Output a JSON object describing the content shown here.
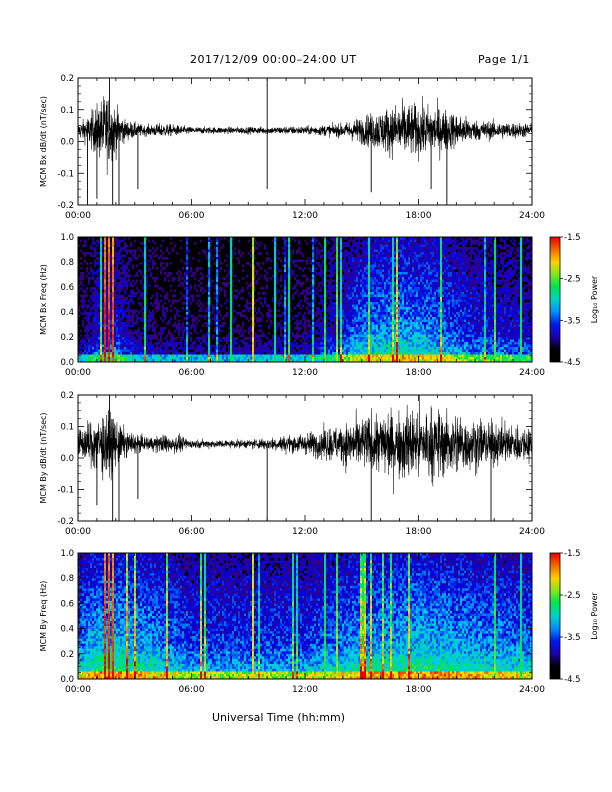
{
  "header": {
    "title": "2017/12/09   00:00–24:00 UT",
    "page": "Page 1/1"
  },
  "chart_data": [
    {
      "type": "line",
      "panel": "Bx dB/dt",
      "ylabel": "MCM Bx dB/dt (nT/sec)",
      "ylim": [
        -0.2,
        0.2
      ],
      "yticks": [
        "0.2",
        "0.1",
        "0.0",
        "-0.1",
        "-0.2"
      ],
      "xlim": [
        "00:00",
        "24:00"
      ],
      "xticks": [
        "00:00",
        "06:00",
        "12:00",
        "18:00",
        "24:00"
      ],
      "baseline": 0.035,
      "noise_profile": [
        [
          "00:00",
          0.02
        ],
        [
          "00:30",
          0.04
        ],
        [
          "01:30",
          0.11
        ],
        [
          "02:30",
          0.03
        ],
        [
          "03:30",
          0.015
        ],
        [
          "04:30",
          0.02
        ],
        [
          "06:00",
          0.01
        ],
        [
          "09:00",
          0.01
        ],
        [
          "12:00",
          0.012
        ],
        [
          "14:00",
          0.02
        ],
        [
          "15:00",
          0.04
        ],
        [
          "17:00",
          0.08
        ],
        [
          "19:00",
          0.07
        ],
        [
          "21:00",
          0.03
        ],
        [
          "24:00",
          0.02
        ]
      ],
      "spikes": [
        [
          "00:30",
          -0.2
        ],
        [
          "01:00",
          -0.18
        ],
        [
          "01:40",
          0.2
        ],
        [
          "01:50",
          -0.2
        ],
        [
          "02:10",
          -0.2
        ],
        [
          "03:10",
          -0.15
        ],
        [
          "10:00",
          -0.15
        ],
        [
          "10:00",
          0.2
        ],
        [
          "15:30",
          -0.16
        ],
        [
          "18:40",
          -0.15
        ],
        [
          "19:30",
          -0.2
        ]
      ]
    },
    {
      "type": "heatmap",
      "panel": "Bx spectrogram",
      "ylabel": "MCM Bx Freq (Hz)",
      "ylim": [
        0.0,
        1.0
      ],
      "yticks": [
        "1.0",
        "0.8",
        "0.6",
        "0.4",
        "0.2",
        "0.0"
      ],
      "xlim": [
        "00:00",
        "24:00"
      ],
      "xticks": [
        "00:00",
        "06:00",
        "12:00",
        "18:00",
        "24:00"
      ],
      "colorbar": {
        "label": "Log₁₀ Power",
        "range": [
          -4.5,
          -1.5
        ],
        "ticks": [
          "-1.5",
          "-2.5",
          "-3.5",
          "-4.5"
        ]
      },
      "activity_profile": [
        [
          "00:00",
          0.15
        ],
        [
          "01:00",
          0.3
        ],
        [
          "02:00",
          0.35
        ],
        [
          "03:00",
          0.2
        ],
        [
          "05:00",
          0.15
        ],
        [
          "08:00",
          0.15
        ],
        [
          "12:00",
          0.18
        ],
        [
          "13:30",
          0.3
        ],
        [
          "15:00",
          0.45
        ],
        [
          "17:00",
          0.5
        ],
        [
          "19:00",
          0.45
        ],
        [
          "21:00",
          0.35
        ],
        [
          "24:00",
          0.3
        ]
      ],
      "bursts": [
        [
          "01:20",
          -1.5
        ],
        [
          "01:35",
          -1.5
        ],
        [
          "01:50",
          -1.6
        ],
        [
          "08:00",
          -2.6
        ],
        [
          "09:10",
          -2.0
        ],
        [
          "10:20",
          -2.8
        ],
        [
          "13:00",
          -2.5
        ],
        [
          "13:40",
          -2.3
        ],
        [
          "22:00",
          -2.4
        ],
        [
          "23:20",
          -2.6
        ]
      ]
    },
    {
      "type": "line",
      "panel": "By dB/dt",
      "ylabel": "MCM By dB/dt (nT/sec)",
      "ylim": [
        -0.2,
        0.2
      ],
      "yticks": [
        "0.2",
        "0.1",
        "0.0",
        "-0.1",
        "-0.2"
      ],
      "xlim": [
        "00:00",
        "24:00"
      ],
      "xticks": [
        "00:00",
        "06:00",
        "12:00",
        "18:00",
        "24:00"
      ],
      "baseline": 0.045,
      "noise_profile": [
        [
          "00:00",
          0.04
        ],
        [
          "00:30",
          0.06
        ],
        [
          "01:30",
          0.1
        ],
        [
          "02:30",
          0.04
        ],
        [
          "03:30",
          0.02
        ],
        [
          "05:00",
          0.03
        ],
        [
          "06:00",
          0.012
        ],
        [
          "09:00",
          0.012
        ],
        [
          "12:00",
          0.03
        ],
        [
          "14:00",
          0.06
        ],
        [
          "16:00",
          0.09
        ],
        [
          "18:00",
          0.11
        ],
        [
          "20:00",
          0.09
        ],
        [
          "22:00",
          0.06
        ],
        [
          "24:00",
          0.05
        ]
      ],
      "spikes": [
        [
          "01:00",
          -0.15
        ],
        [
          "01:40",
          0.2
        ],
        [
          "01:50",
          -0.2
        ],
        [
          "02:10",
          -0.2
        ],
        [
          "03:10",
          -0.13
        ],
        [
          "10:00",
          -0.2
        ],
        [
          "15:30",
          -0.2
        ],
        [
          "21:50",
          -0.2
        ]
      ]
    },
    {
      "type": "heatmap",
      "panel": "By spectrogram",
      "ylabel": "MCM By Freq (Hz)",
      "ylim": [
        0.0,
        1.0
      ],
      "yticks": [
        "1.0",
        "0.8",
        "0.6",
        "0.4",
        "0.2",
        "0.0"
      ],
      "xlim": [
        "00:00",
        "24:00"
      ],
      "xticks": [
        "00:00",
        "06:00",
        "12:00",
        "18:00",
        "24:00"
      ],
      "colorbar": {
        "label": "Log₁₀ Power",
        "range": [
          -4.5,
          -1.5
        ],
        "ticks": [
          "-1.5",
          "-2.5",
          "-3.5",
          "-4.5"
        ]
      },
      "activity_profile": [
        [
          "00:00",
          0.45
        ],
        [
          "01:00",
          0.55
        ],
        [
          "02:00",
          0.55
        ],
        [
          "04:00",
          0.5
        ],
        [
          "06:00",
          0.4
        ],
        [
          "09:00",
          0.4
        ],
        [
          "12:00",
          0.4
        ],
        [
          "13:30",
          0.45
        ],
        [
          "15:00",
          0.5
        ],
        [
          "18:00",
          0.55
        ],
        [
          "21:00",
          0.5
        ],
        [
          "24:00",
          0.45
        ]
      ],
      "bursts": [
        [
          "01:20",
          -1.5
        ],
        [
          "01:35",
          -1.5
        ],
        [
          "01:50",
          -1.6
        ],
        [
          "09:10",
          -2.0
        ],
        [
          "13:00",
          -2.5
        ],
        [
          "13:40",
          -2.3
        ],
        [
          "22:00",
          -2.4
        ],
        [
          "23:20",
          -2.6
        ]
      ]
    }
  ],
  "xlabel": "Universal Time (hh:mm)"
}
